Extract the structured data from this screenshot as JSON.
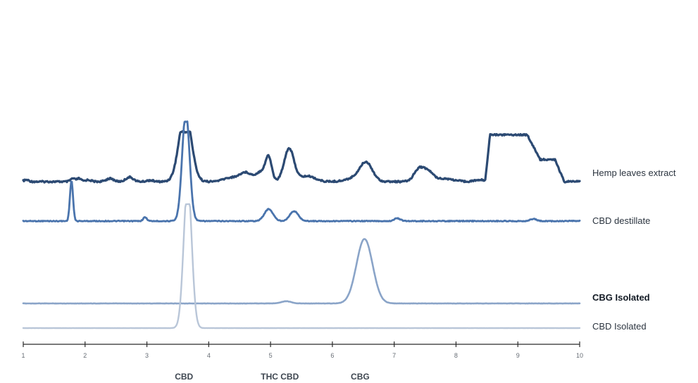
{
  "chart_data": {
    "type": "line",
    "title": "",
    "xlabel": "",
    "ylabel": "",
    "xlim": [
      1,
      10
    ],
    "x_ticks": [
      1,
      2,
      3,
      4,
      5,
      6,
      7,
      8,
      9,
      10
    ],
    "grid": false,
    "legend": "right, one label per trace",
    "peak_labels": [
      {
        "x": 3.6,
        "text": "CBD"
      },
      {
        "x": 5.15,
        "text": "THC CBD"
      },
      {
        "x": 6.45,
        "text": "CBG"
      }
    ],
    "series": [
      {
        "name": "Hemp leaves extract",
        "color": "#2c4a73",
        "label_bold": false,
        "baseline": 0.0,
        "clip_top": 7.2,
        "peaks": [
          {
            "x": 1.05,
            "h": 0.25,
            "w": 0.04
          },
          {
            "x": 1.8,
            "h": 0.45,
            "w": 0.035
          },
          {
            "x": 1.9,
            "h": 0.45,
            "w": 0.035
          },
          {
            "x": 2.05,
            "h": 0.25,
            "w": 0.05
          },
          {
            "x": 2.4,
            "h": 0.45,
            "w": 0.06
          },
          {
            "x": 2.72,
            "h": 0.65,
            "w": 0.06
          },
          {
            "x": 3.05,
            "h": 0.2,
            "w": 0.05
          },
          {
            "x": 3.62,
            "h": 10.0,
            "w": 0.1
          },
          {
            "x": 4.35,
            "h": 0.55,
            "w": 0.12
          },
          {
            "x": 4.6,
            "h": 1.3,
            "w": 0.1
          },
          {
            "x": 4.85,
            "h": 1.4,
            "w": 0.08
          },
          {
            "x": 4.97,
            "h": 3.3,
            "w": 0.05
          },
          {
            "x": 5.3,
            "h": 4.8,
            "w": 0.08
          },
          {
            "x": 5.6,
            "h": 0.8,
            "w": 0.12
          },
          {
            "x": 6.55,
            "h": 2.5,
            "w": 0.1
          },
          {
            "x": 6.4,
            "h": 0.6,
            "w": 0.15
          },
          {
            "x": 7.4,
            "h": 1.8,
            "w": 0.08
          },
          {
            "x": 7.55,
            "h": 1.3,
            "w": 0.08
          },
          {
            "x": 7.8,
            "h": 0.45,
            "w": 0.15
          },
          {
            "x": 8.4,
            "h": 0.25,
            "w": 0.1
          }
        ],
        "plateaus": [
          {
            "x0": 8.55,
            "x1": 9.15,
            "h": 6.8,
            "ramp_in": 0.08,
            "ramp_out": 0.4
          },
          {
            "x0": 9.15,
            "x1": 9.6,
            "h": 3.2,
            "ramp_in": 0.05,
            "ramp_out": 0.15
          }
        ]
      },
      {
        "name": "CBD destillate",
        "color": "#4a74ad",
        "label_bold": false,
        "baseline": 0.0,
        "clip_top": 9.1,
        "peaks": [
          {
            "x": 1.78,
            "h": 3.7,
            "w": 0.025
          },
          {
            "x": 2.97,
            "h": 0.35,
            "w": 0.03
          },
          {
            "x": 3.63,
            "h": 10.0,
            "w": 0.06
          },
          {
            "x": 4.97,
            "h": 1.1,
            "w": 0.07
          },
          {
            "x": 5.38,
            "h": 0.9,
            "w": 0.07
          },
          {
            "x": 7.05,
            "h": 0.25,
            "w": 0.05
          },
          {
            "x": 9.25,
            "h": 0.2,
            "w": 0.05
          }
        ],
        "plateaus": []
      },
      {
        "name": "CBG Isolated",
        "color": "#8aa4c8",
        "label_bold": true,
        "baseline": 0.0,
        "clip_top": 20.0,
        "peaks": [
          {
            "x": 5.25,
            "h": 0.35,
            "w": 0.08
          },
          {
            "x": 6.52,
            "h": 10.3,
            "w": 0.13
          }
        ],
        "plateaus": []
      },
      {
        "name": "CBD Isolated",
        "color": "#b9c6d8",
        "label_bold": false,
        "baseline": 0.0,
        "clip_top": 20.0,
        "peaks": [
          {
            "x": 3.66,
            "h": 23.5,
            "w": 0.065
          }
        ],
        "plateaus": []
      }
    ]
  }
}
